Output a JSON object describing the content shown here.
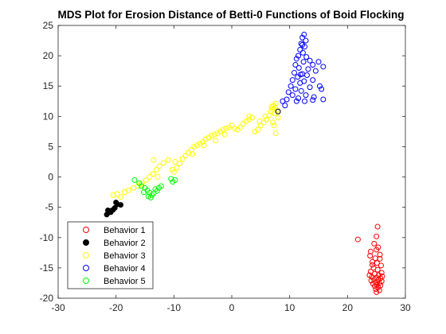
{
  "chart_data": {
    "type": "scatter",
    "title": "MDS Plot for Erosion Distance of Betti-0 Functions of Boid Flocking",
    "xlabel": "",
    "ylabel": "",
    "xlim": [
      -30,
      30
    ],
    "ylim": [
      -20,
      25
    ],
    "x_ticks": [
      -30,
      -20,
      -10,
      0,
      10,
      20,
      30
    ],
    "y_ticks": [
      -20,
      -15,
      -10,
      -5,
      0,
      5,
      10,
      15,
      20,
      25
    ],
    "grid": false,
    "legend_position": "bottom-left",
    "series": [
      {
        "name": "Behavior 1",
        "color": "#ff0000",
        "filled": false,
        "points": [
          [
            25.2,
            -8.2
          ],
          [
            25.0,
            -9.8
          ],
          [
            21.8,
            -10.3
          ],
          [
            24.6,
            -11.0
          ],
          [
            25.3,
            -11.6
          ],
          [
            24.0,
            -12.3
          ],
          [
            25.6,
            -12.8
          ],
          [
            24.8,
            -13.4
          ],
          [
            24.3,
            -14.0
          ],
          [
            25.1,
            -14.2
          ],
          [
            25.8,
            -14.6
          ],
          [
            24.5,
            -15.0
          ],
          [
            25.2,
            -15.3
          ],
          [
            24.0,
            -15.6
          ],
          [
            25.9,
            -15.8
          ],
          [
            24.7,
            -16.0
          ],
          [
            25.4,
            -16.2
          ],
          [
            24.2,
            -16.5
          ],
          [
            25.0,
            -16.6
          ],
          [
            25.7,
            -16.7
          ],
          [
            24.6,
            -16.9
          ],
          [
            25.3,
            -17.0
          ],
          [
            24.1,
            -17.1
          ],
          [
            25.9,
            -17.2
          ],
          [
            24.9,
            -17.4
          ],
          [
            25.5,
            -17.5
          ],
          [
            24.4,
            -17.6
          ],
          [
            25.1,
            -17.8
          ],
          [
            25.7,
            -17.9
          ],
          [
            24.7,
            -18.0
          ],
          [
            25.3,
            -18.2
          ],
          [
            24.9,
            -18.5
          ],
          [
            25.5,
            -18.7
          ],
          [
            25.0,
            -19.0
          ],
          [
            26.0,
            -16.4
          ],
          [
            23.8,
            -16.2
          ],
          [
            24.3,
            -14.5
          ],
          [
            25.6,
            -13.5
          ],
          [
            23.9,
            -13.0
          ],
          [
            25.0,
            -12.0
          ]
        ]
      },
      {
        "name": "Behavior 2",
        "color": "#000000",
        "filled": true,
        "points": [
          [
            -21.6,
            -6.2
          ],
          [
            -21.3,
            -5.9
          ],
          [
            -21.0,
            -5.6
          ],
          [
            -20.5,
            -5.4
          ],
          [
            -20.2,
            -5.1
          ],
          [
            -19.8,
            -4.5
          ],
          [
            -19.2,
            -4.6
          ],
          [
            -20.0,
            -4.2
          ],
          [
            -20.9,
            -5.8
          ],
          [
            -21.4,
            -5.5
          ]
        ]
      },
      {
        "name": "Behavior 3",
        "color": "#ffff00",
        "filled": false,
        "points": [
          [
            -20.5,
            -3.0
          ],
          [
            -19.8,
            -2.8
          ],
          [
            -19.2,
            -3.3
          ],
          [
            -18.5,
            -2.5
          ],
          [
            -17.8,
            -2.2
          ],
          [
            -17.0,
            -1.8
          ],
          [
            -16.2,
            -1.5
          ],
          [
            -15.5,
            -1.0
          ],
          [
            -14.8,
            -0.5
          ],
          [
            -14.2,
            0.0
          ],
          [
            -13.6,
            0.5
          ],
          [
            -13.0,
            1.2
          ],
          [
            -12.5,
            1.8
          ],
          [
            -11.8,
            2.3
          ],
          [
            -11.0,
            2.8
          ],
          [
            -10.3,
            1.2
          ],
          [
            -10.0,
            0.8
          ],
          [
            -9.5,
            1.5
          ],
          [
            -9.0,
            2.2
          ],
          [
            -8.5,
            3.0
          ],
          [
            -8.0,
            3.5
          ],
          [
            -7.5,
            4.0
          ],
          [
            -7.0,
            4.5
          ],
          [
            -6.5,
            5.0
          ],
          [
            -6.0,
            5.2
          ],
          [
            -5.5,
            5.5
          ],
          [
            -5.0,
            5.8
          ],
          [
            -4.5,
            6.2
          ],
          [
            -4.0,
            6.5
          ],
          [
            -3.5,
            6.8
          ],
          [
            -3.0,
            7.0
          ],
          [
            -2.5,
            7.2
          ],
          [
            -2.0,
            7.5
          ],
          [
            -1.5,
            7.8
          ],
          [
            -1.0,
            8.0
          ],
          [
            -0.5,
            8.2
          ],
          [
            0.0,
            8.5
          ],
          [
            0.5,
            8.0
          ],
          [
            1.0,
            7.8
          ],
          [
            1.5,
            8.2
          ],
          [
            2.0,
            8.8
          ],
          [
            2.5,
            9.2
          ],
          [
            3.0,
            9.5
          ],
          [
            3.5,
            9.8
          ],
          [
            4.0,
            7.5
          ],
          [
            4.5,
            7.8
          ],
          [
            5.0,
            8.5
          ],
          [
            5.5,
            9.0
          ],
          [
            6.0,
            9.5
          ],
          [
            6.5,
            10.2
          ],
          [
            6.8,
            10.8
          ],
          [
            7.0,
            11.2
          ],
          [
            7.2,
            11.8
          ],
          [
            7.5,
            11.5
          ],
          [
            7.8,
            11.0
          ],
          [
            7.4,
            10.5
          ],
          [
            6.9,
            11.6
          ],
          [
            7.6,
            12.1
          ],
          [
            8.0,
            9.8
          ],
          [
            7.3,
            8.5
          ],
          [
            7.6,
            7.2
          ],
          [
            7.1,
            9.0
          ],
          [
            3.0,
            10.0
          ],
          [
            -13.5,
            2.8
          ],
          [
            -12.8,
            0.0
          ],
          [
            -15.8,
            -1.2
          ],
          [
            -9.8,
            2.5
          ],
          [
            -6.8,
            3.8
          ],
          [
            -4.8,
            5.2
          ],
          [
            -2.8,
            6.0
          ],
          [
            -1.2,
            7.0
          ],
          [
            4.8,
            9.2
          ],
          [
            5.8,
            10.0
          ]
        ]
      },
      {
        "name": "Behavior 4",
        "color": "#0000ff",
        "filled": false,
        "points": [
          [
            12.5,
            23.5
          ],
          [
            12.2,
            23.0
          ],
          [
            12.8,
            22.5
          ],
          [
            12.0,
            22.0
          ],
          [
            12.6,
            21.5
          ],
          [
            11.8,
            21.0
          ],
          [
            12.3,
            20.5
          ],
          [
            11.5,
            20.0
          ],
          [
            12.9,
            19.8
          ],
          [
            11.2,
            19.5
          ],
          [
            13.5,
            19.2
          ],
          [
            14.0,
            18.5
          ],
          [
            15.0,
            19.0
          ],
          [
            15.8,
            18.2
          ],
          [
            11.0,
            18.5
          ],
          [
            11.6,
            18.0
          ],
          [
            13.2,
            17.8
          ],
          [
            10.8,
            17.2
          ],
          [
            12.2,
            17.0
          ],
          [
            11.4,
            16.5
          ],
          [
            13.0,
            16.8
          ],
          [
            14.5,
            17.5
          ],
          [
            10.5,
            16.0
          ],
          [
            11.8,
            15.5
          ],
          [
            12.5,
            15.8
          ],
          [
            14.0,
            16.0
          ],
          [
            10.2,
            15.0
          ],
          [
            11.0,
            14.5
          ],
          [
            12.0,
            14.2
          ],
          [
            13.5,
            14.8
          ],
          [
            15.2,
            15.0
          ],
          [
            9.8,
            14.0
          ],
          [
            10.5,
            13.5
          ],
          [
            11.5,
            13.0
          ],
          [
            12.8,
            13.5
          ],
          [
            14.2,
            13.2
          ],
          [
            15.5,
            14.5
          ],
          [
            9.5,
            12.8
          ],
          [
            8.8,
            12.5
          ],
          [
            11.2,
            12.5
          ],
          [
            12.6,
            12.5
          ],
          [
            14.0,
            12.7
          ],
          [
            15.8,
            12.8
          ],
          [
            9.2,
            11.8
          ],
          [
            12.2,
            21.8
          ],
          [
            12.4,
            19.0
          ],
          [
            11.9,
            16.9
          ]
        ]
      },
      {
        "name": "Behavior 5",
        "color": "#00ff00",
        "filled": false,
        "points": [
          [
            -16.8,
            -0.5
          ],
          [
            -16.0,
            -1.0
          ],
          [
            -15.6,
            -1.5
          ],
          [
            -15.0,
            -1.8
          ],
          [
            -14.6,
            -2.2
          ],
          [
            -14.2,
            -2.6
          ],
          [
            -13.8,
            -3.0
          ],
          [
            -14.4,
            -3.2
          ],
          [
            -15.2,
            -2.5
          ],
          [
            -13.2,
            -2.0
          ],
          [
            -12.6,
            -1.8
          ],
          [
            -12.2,
            -1.5
          ],
          [
            -10.2,
            -0.8
          ],
          [
            -9.8,
            -0.5
          ],
          [
            -10.5,
            -0.3
          ],
          [
            -14.0,
            -3.4
          ],
          [
            -13.5,
            -2.7
          ],
          [
            -12.9,
            -2.3
          ]
        ]
      }
    ],
    "extra_points": [
      {
        "color": "#000000",
        "filled": false,
        "points": [
          [
            8.0,
            10.8
          ]
        ]
      }
    ]
  }
}
